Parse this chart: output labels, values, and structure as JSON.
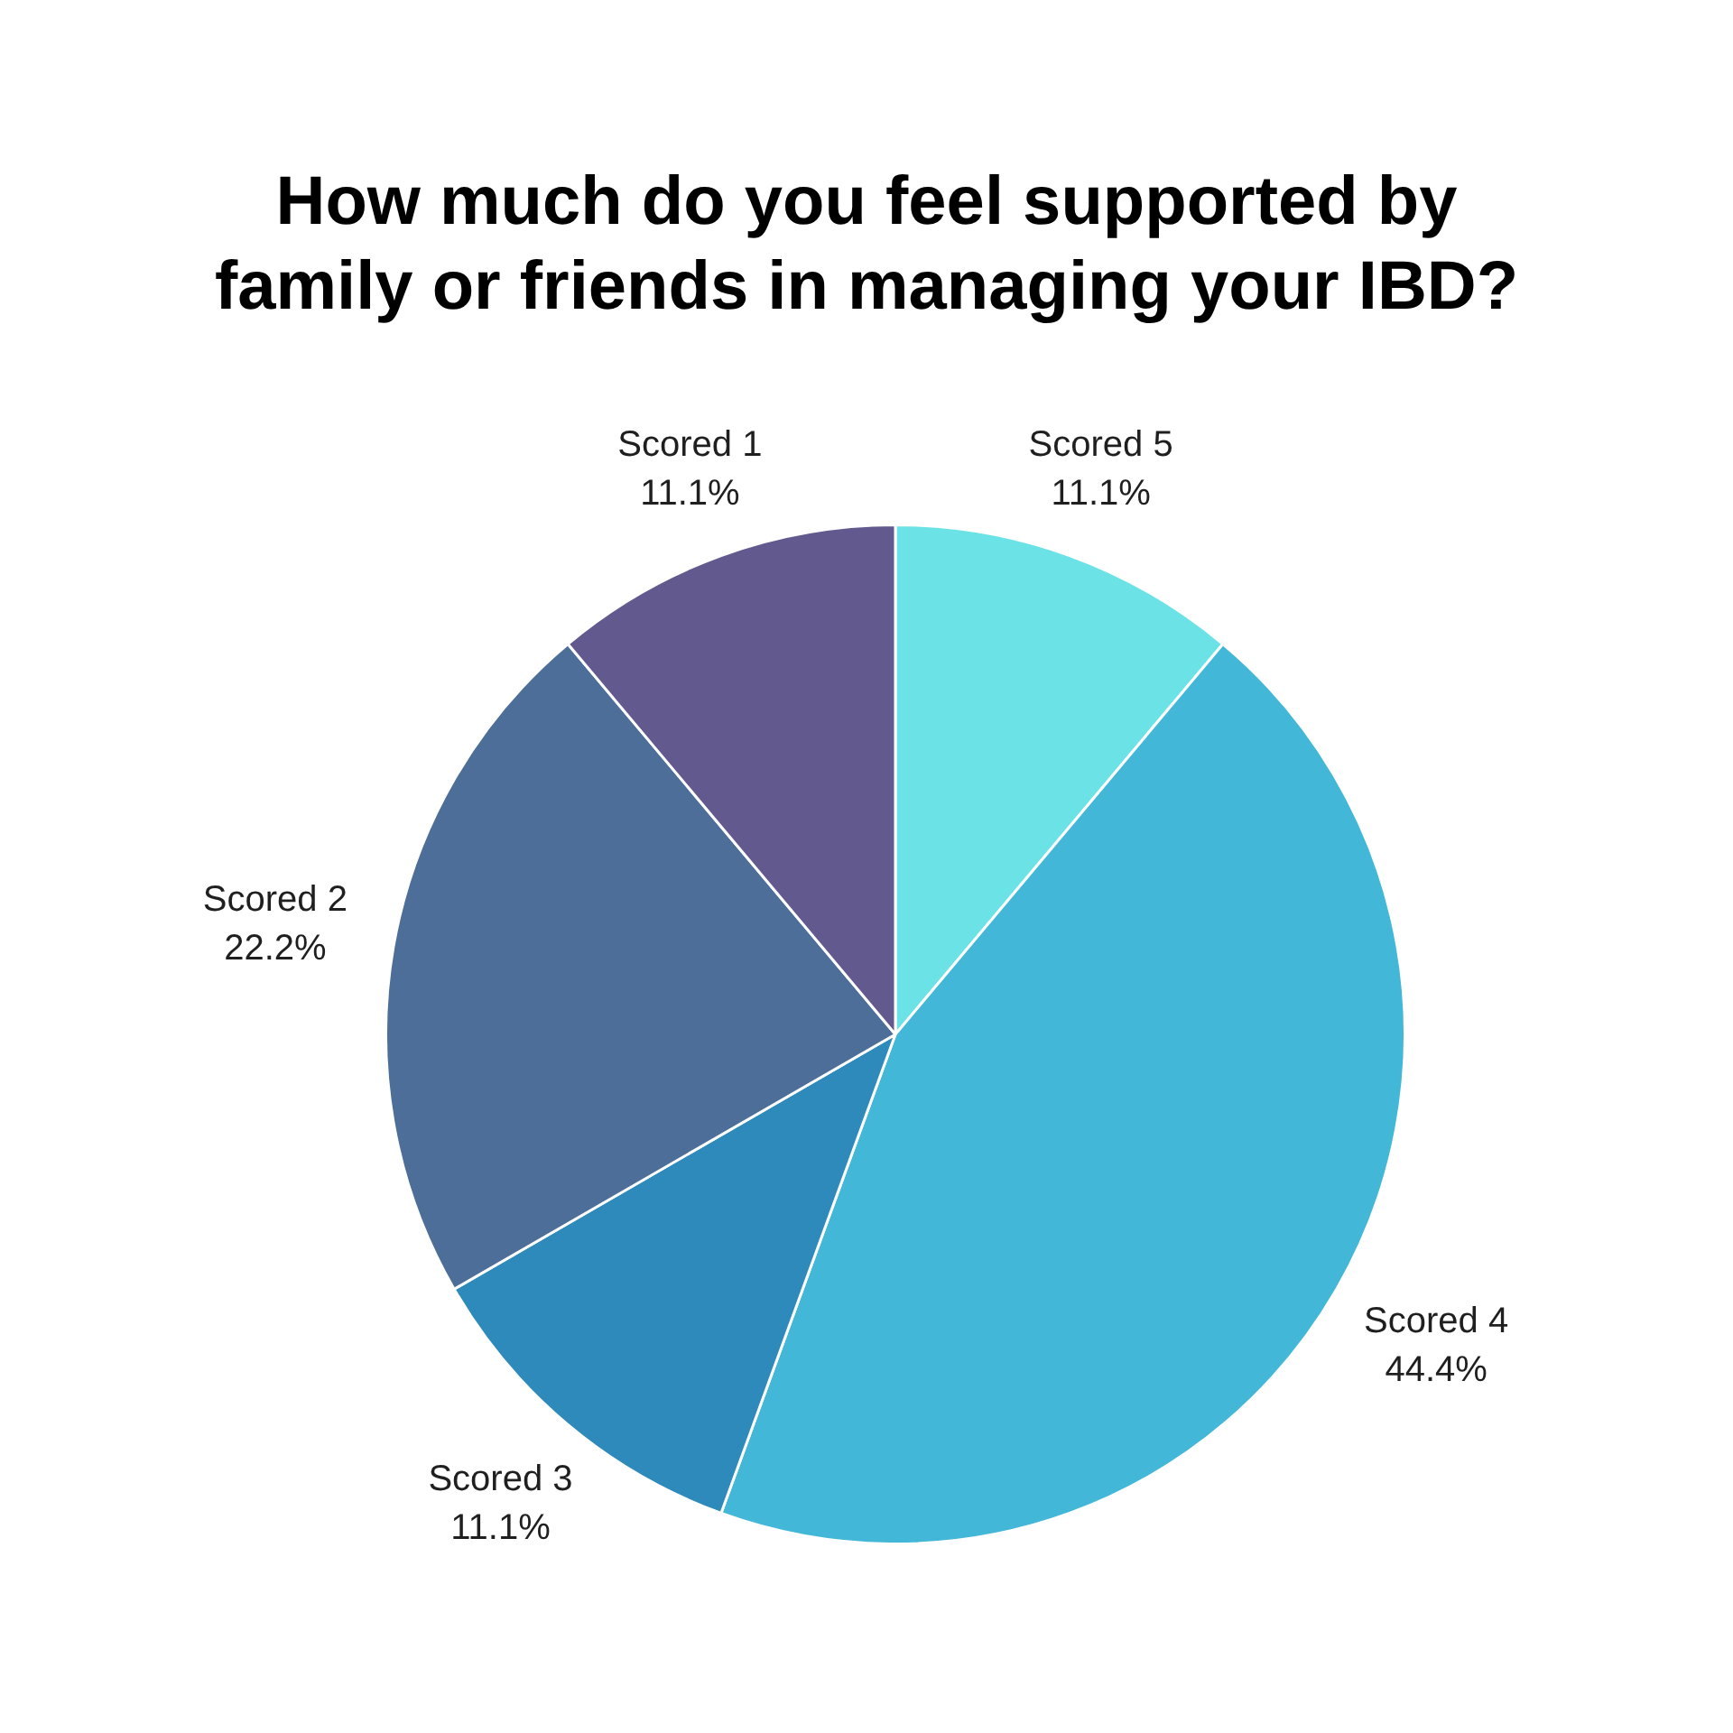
{
  "chart_data": {
    "type": "pie",
    "title": "How much do you feel supported by family or friends in managing your IBD?",
    "categories": [
      "Scored 5",
      "Scored 4",
      "Scored 3",
      "Scored 2",
      "Scored 1"
    ],
    "values": [
      11.1,
      44.4,
      11.1,
      22.2,
      11.1
    ],
    "value_labels": [
      "11.1%",
      "44.4%",
      "11.1%",
      "22.2%",
      "11.1%"
    ],
    "colors": [
      "#6be3e6",
      "#43b7d7",
      "#2d8aba",
      "#4d6e98",
      "#625a8e"
    ]
  }
}
